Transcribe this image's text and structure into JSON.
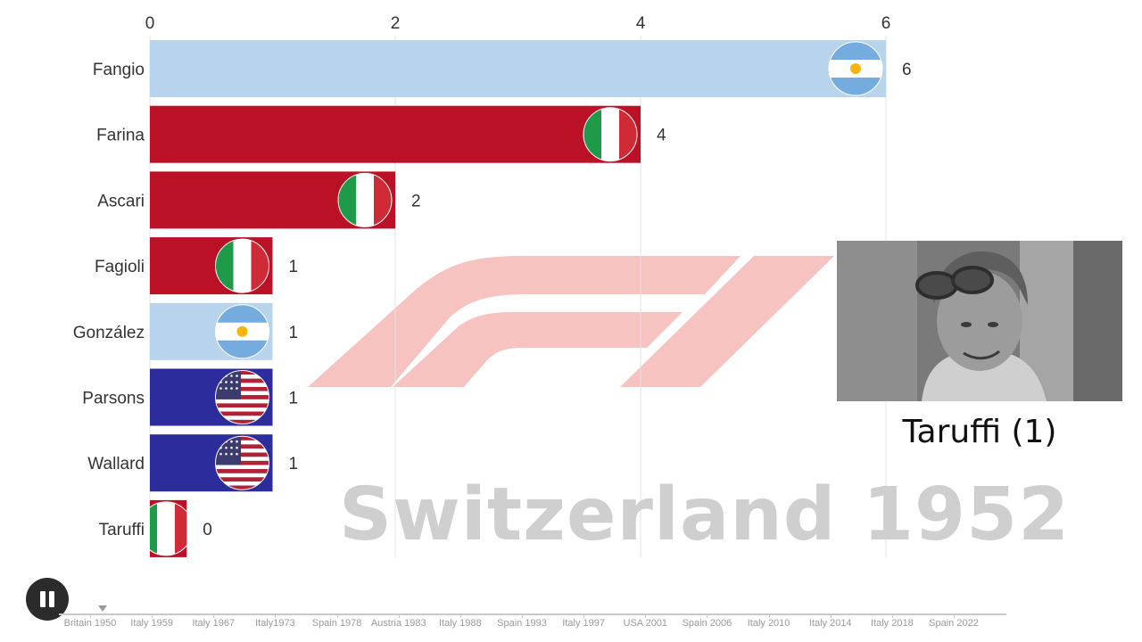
{
  "chart_data": {
    "type": "bar",
    "orientation": "horizontal",
    "xlim": [
      0,
      6
    ],
    "x_ticks": [
      "0",
      "2",
      "4",
      "6"
    ],
    "grid": true,
    "categories": [
      "Fangio",
      "Farina",
      "Ascari",
      "Fagioli",
      "González",
      "Parsons",
      "Wallard",
      "Taruffi"
    ],
    "values": [
      6,
      4,
      2,
      1,
      1,
      1,
      1,
      0
    ],
    "value_labels": [
      "6",
      "4",
      "2",
      "1",
      "1",
      "1",
      "1",
      "0"
    ],
    "countries": [
      "argentina",
      "italy",
      "italy",
      "italy",
      "argentina",
      "usa",
      "usa",
      "italy"
    ],
    "country_colors": {
      "argentina": "#b8d4ec",
      "italy": "#bb1126",
      "usa": "#2c2c9c"
    },
    "flag_icons": {
      "argentina": "argentina-flag-icon",
      "italy": "italy-flag-icon",
      "usa": "usa-flag-icon"
    }
  },
  "year_title": "Switzerland 1952",
  "highlight": {
    "caption": "Taruffi (1)"
  },
  "controls": {
    "pause_icon": "pause-icon"
  },
  "timeline": {
    "labels": [
      "Britain 1950",
      "Italy 1959",
      "Italy 1967",
      "Italy1973",
      "Spain 1978",
      "Austria 1983",
      "Italy 1988",
      "Spain 1993",
      "Italy 1997",
      "USA 2001",
      "Spain 2006",
      "Italy 2010",
      "Italy 2014",
      "Italy 2018",
      "Spain 2022"
    ]
  },
  "watermark": {
    "logo_icon": "f1-logo-icon",
    "color": "#f4b9b6"
  }
}
